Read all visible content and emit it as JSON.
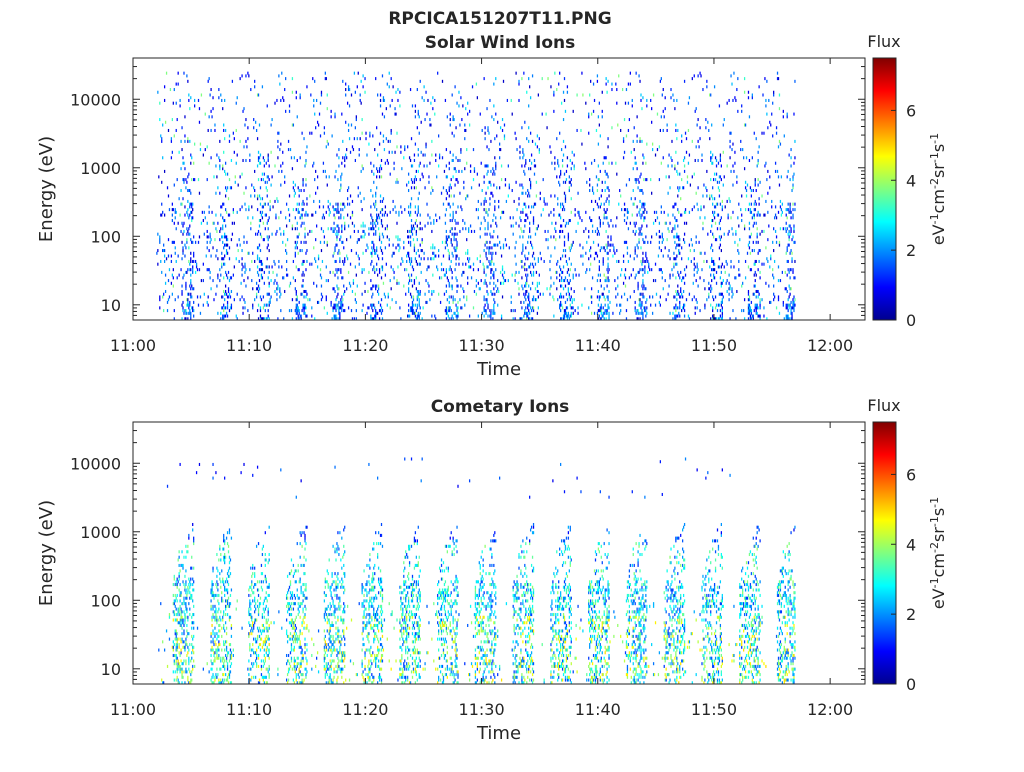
{
  "figure_title": "RPCICA151207T11.PNG",
  "chart_data": [
    {
      "type": "heatmap",
      "title": "Solar Wind Ions",
      "xlabel": "Time",
      "ylabel": "Energy (eV)",
      "x_tick_labels": [
        "11:00",
        "11:10",
        "11:20",
        "11:30",
        "11:40",
        "11:50",
        "12:00"
      ],
      "x_range": [
        "11:00",
        "12:03"
      ],
      "y_scale": "log",
      "y_tick_values": [
        10,
        100,
        1000,
        10000
      ],
      "y_tick_labels": [
        "10",
        "100",
        "1000",
        "10000"
      ],
      "y_range": [
        6,
        40000
      ],
      "data_time_span": [
        "11:02",
        "11:57"
      ],
      "dominant_flux_range": [
        0.5,
        2.5
      ],
      "colorbar": {
        "title": "Flux",
        "label": "eV-1cm-2sr-1s-1",
        "range": [
          0,
          7.5
        ],
        "tick_values": [
          0,
          2,
          4,
          6
        ],
        "tick_labels": [
          "0",
          "2",
          "4",
          "6"
        ],
        "colormap": "jet"
      }
    },
    {
      "type": "heatmap",
      "title": "Cometary Ions",
      "xlabel": "Time",
      "ylabel": "Energy (eV)",
      "x_tick_labels": [
        "11:00",
        "11:10",
        "11:20",
        "11:30",
        "11:40",
        "11:50",
        "12:00"
      ],
      "x_range": [
        "11:00",
        "12:03"
      ],
      "y_scale": "log",
      "y_tick_values": [
        10,
        100,
        1000,
        10000
      ],
      "y_tick_labels": [
        "10",
        "100",
        "1000",
        "10000"
      ],
      "y_range": [
        6,
        40000
      ],
      "data_time_span": [
        "11:02",
        "11:57"
      ],
      "dominant_flux_range": [
        1,
        5
      ],
      "colorbar": {
        "title": "Flux",
        "label": "eV-1cm-2sr-1s-1",
        "range": [
          0,
          7.5
        ],
        "tick_values": [
          0,
          2,
          4,
          6
        ],
        "tick_labels": [
          "0",
          "2",
          "4",
          "6"
        ],
        "colormap": "jet"
      }
    }
  ]
}
